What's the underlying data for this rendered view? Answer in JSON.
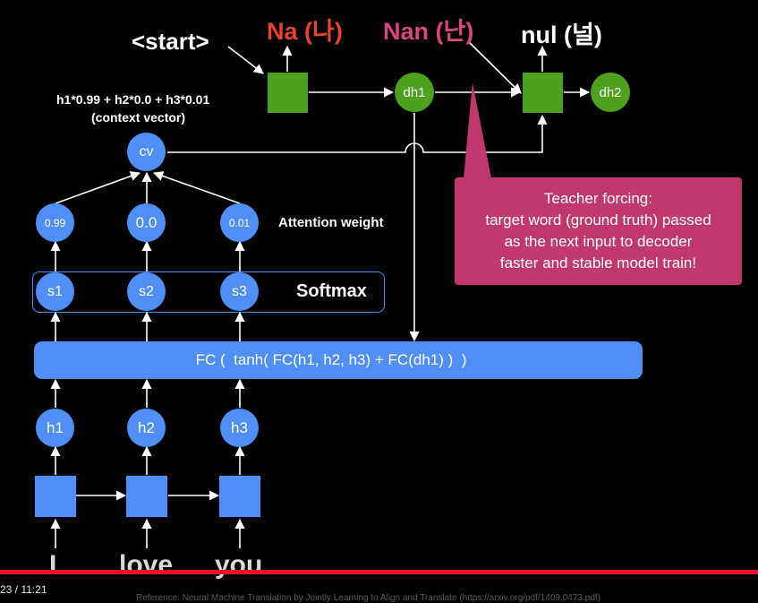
{
  "decoder": {
    "start_token": "<start>",
    "outputs": [
      "Na (나)",
      "Nan (난)",
      "nul (널)"
    ],
    "output_colors": [
      "#e8432f",
      "#d9477f",
      "#ffffff"
    ],
    "hidden_states": [
      "dh1",
      "dh2"
    ]
  },
  "context": {
    "formula": "h1*0.99 + h2*0.0 + h3*0.01",
    "caption": "(context vector)",
    "node_label": "cv"
  },
  "attention": {
    "weights": [
      "0.99",
      "0.0",
      "0.01"
    ],
    "label": "Attention weight"
  },
  "softmax": {
    "nodes": [
      "s1",
      "s2",
      "s3"
    ],
    "label": "Softmax"
  },
  "fc_bar": {
    "text": "FC (  tanh( FC(h1, h2, h3) + FC(dh1) )  )"
  },
  "encoder": {
    "hidden_states": [
      "h1",
      "h2",
      "h3"
    ],
    "input_words": [
      "I",
      "love",
      "you"
    ]
  },
  "callout": {
    "lines": [
      "Teacher forcing:",
      "target word (ground truth) passed",
      "as the next input to decoder",
      "faster and stable model train!"
    ],
    "color": "#c0386e"
  },
  "player": {
    "time": "23 / 11:21",
    "reference": "Reference: Neural Machine Translation by Jointly Learning to Align and Translate (https://arxiv.org/pdf/1409.0473.pdf)"
  },
  "colors": {
    "node_blue": "#4f8ff7",
    "node_green": "#4ea11e",
    "progress_red": "#e0152a"
  }
}
